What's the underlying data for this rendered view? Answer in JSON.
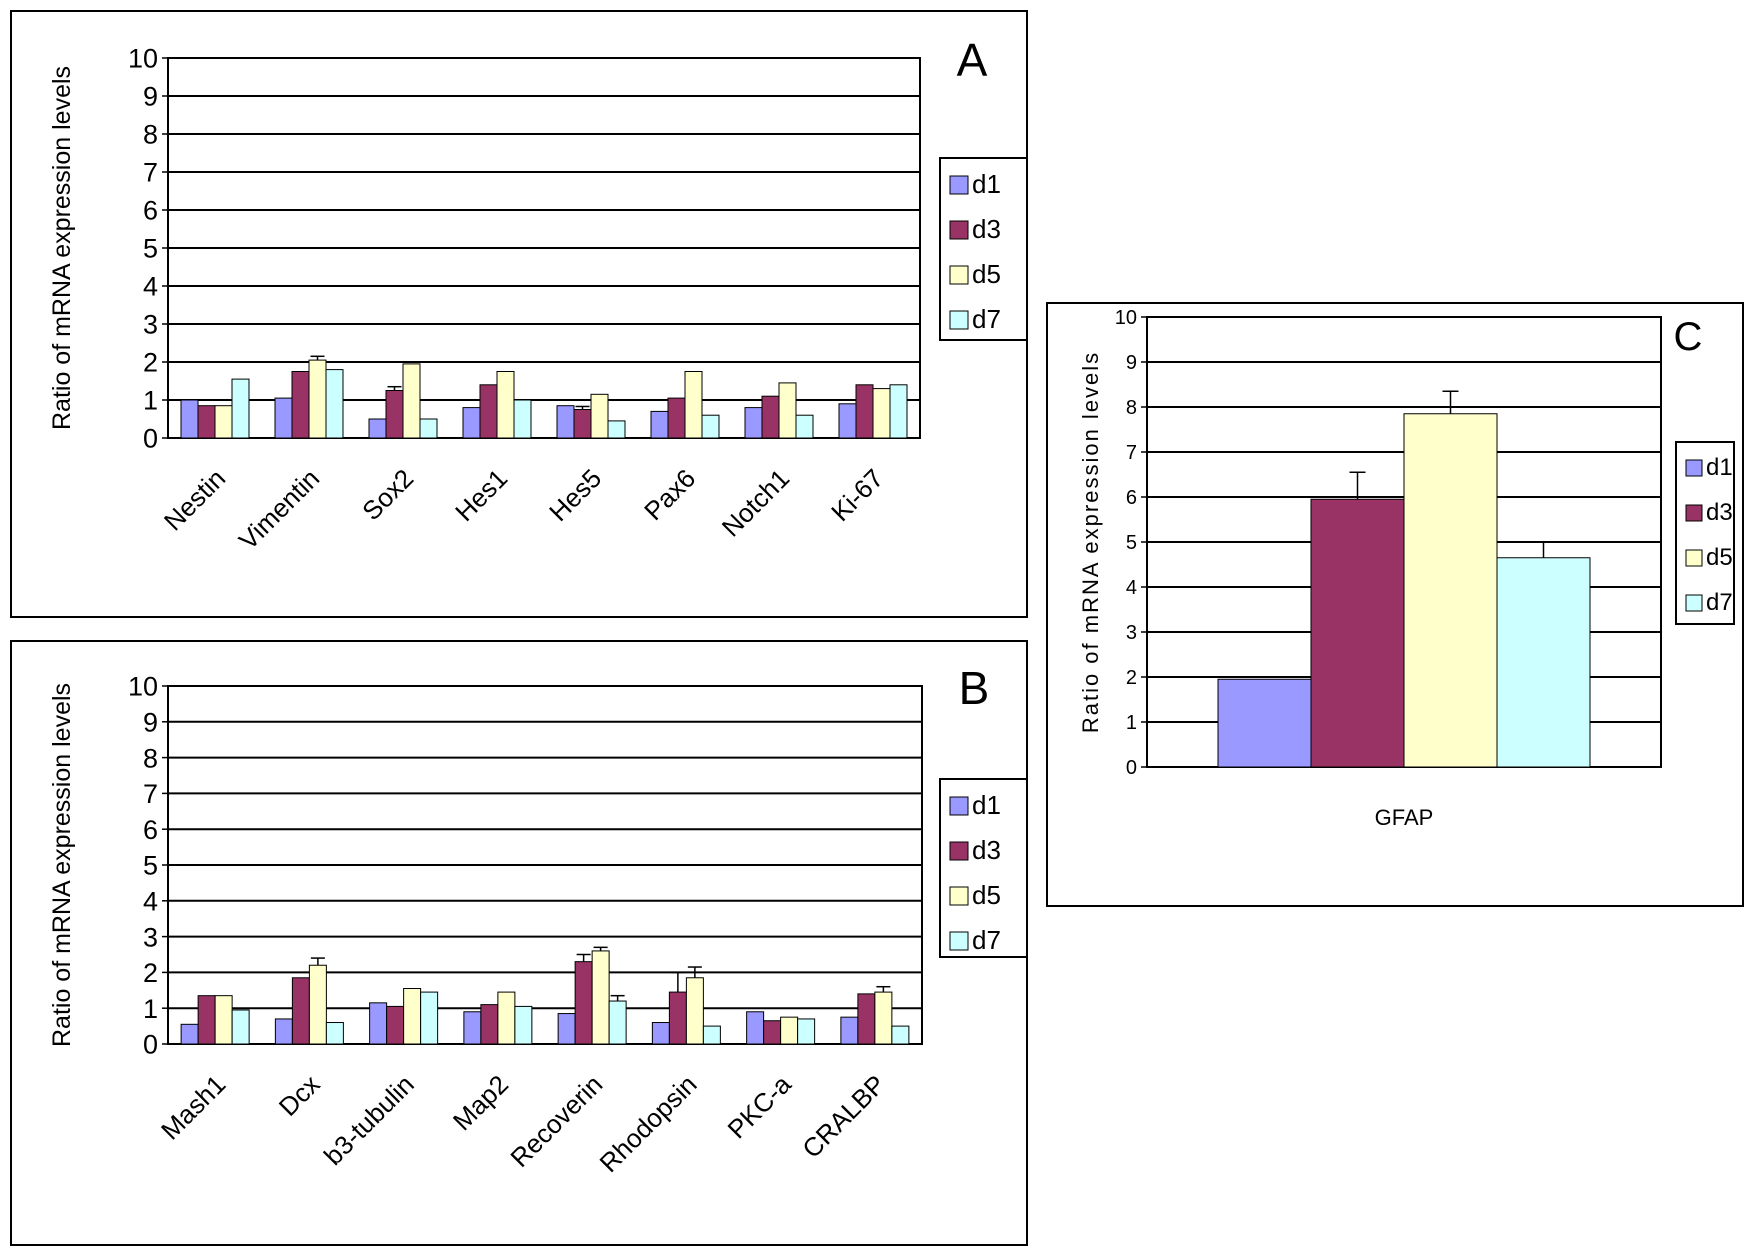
{
  "chart_data": [
    {
      "panel": "A",
      "type": "bar",
      "ylabel": "Ratio of mRNA expression levels",
      "ylim": [
        0,
        10
      ],
      "yticks": [
        "0",
        "1",
        "2",
        "3",
        "4",
        "5",
        "6",
        "7",
        "8",
        "9",
        "10"
      ],
      "grid": true,
      "legend_position": "right",
      "categories": [
        "Nestin",
        "Vimentin",
        "Sox2",
        "Hes1",
        "Hes5",
        "Pax6",
        "Notch1",
        "Ki-67"
      ],
      "series": [
        {
          "name": "d1",
          "color": "#9999ff",
          "values": [
            1.0,
            1.05,
            0.5,
            0.8,
            0.85,
            0.7,
            0.8,
            0.9
          ],
          "errors": [
            0,
            0,
            0,
            0,
            0,
            0,
            0,
            0
          ]
        },
        {
          "name": "d3",
          "color": "#993366",
          "values": [
            0.85,
            1.75,
            1.25,
            1.4,
            0.75,
            1.05,
            1.1,
            1.4
          ],
          "errors": [
            0,
            0,
            0.1,
            0,
            0.08,
            0,
            0,
            0
          ]
        },
        {
          "name": "d5",
          "color": "#ffffcc",
          "values": [
            0.85,
            2.05,
            1.95,
            1.75,
            1.15,
            1.75,
            1.45,
            1.3
          ],
          "errors": [
            0,
            0.1,
            0,
            0,
            0,
            0,
            0,
            0
          ]
        },
        {
          "name": "d7",
          "color": "#ccffff",
          "values": [
            1.55,
            1.8,
            0.5,
            1.0,
            0.45,
            0.6,
            0.6,
            1.4
          ],
          "errors": [
            0,
            0,
            0,
            0,
            0,
            0,
            0,
            0
          ]
        }
      ]
    },
    {
      "panel": "B",
      "type": "bar",
      "ylabel": "Ratio of mRNA expression levels",
      "ylim": [
        0,
        10
      ],
      "yticks": [
        "0",
        "1",
        "2",
        "3",
        "4",
        "5",
        "6",
        "7",
        "8",
        "9",
        "10"
      ],
      "grid": true,
      "legend_position": "right",
      "categories": [
        "Mash1",
        "Dcx",
        "b3-tubulin",
        "Map2",
        "Recoverin",
        "Rhodopsin",
        "PKC-a",
        "CRALBP"
      ],
      "series": [
        {
          "name": "d1",
          "color": "#9999ff",
          "values": [
            0.55,
            0.7,
            1.15,
            0.9,
            0.85,
            0.6,
            0.9,
            0.75
          ],
          "errors": [
            0,
            0,
            0,
            0,
            0,
            0,
            0,
            0
          ]
        },
        {
          "name": "d3",
          "color": "#993366",
          "values": [
            1.35,
            1.85,
            1.05,
            1.1,
            2.3,
            1.45,
            0.65,
            1.4
          ],
          "errors": [
            0,
            0,
            0,
            0,
            0.2,
            0.55,
            0,
            0
          ]
        },
        {
          "name": "d5",
          "color": "#ffffcc",
          "values": [
            1.35,
            2.2,
            1.55,
            1.45,
            2.6,
            1.85,
            0.75,
            1.45
          ],
          "errors": [
            0,
            0.2,
            0,
            0,
            0.1,
            0.3,
            0,
            0.15
          ]
        },
        {
          "name": "d7",
          "color": "#ccffff",
          "values": [
            0.95,
            0.6,
            1.45,
            1.05,
            1.2,
            0.5,
            0.7,
            0.5
          ],
          "errors": [
            0,
            0,
            0,
            0,
            0.15,
            0,
            0,
            0
          ]
        }
      ]
    },
    {
      "panel": "C",
      "type": "bar",
      "ylabel": "Ratio of mRNA expression levels",
      "ylim": [
        0,
        10
      ],
      "yticks": [
        "0",
        "1",
        "2",
        "3",
        "4",
        "5",
        "6",
        "7",
        "8",
        "9",
        "10"
      ],
      "grid": true,
      "legend_position": "right",
      "categories": [
        "GFAP"
      ],
      "series": [
        {
          "name": "d1",
          "color": "#9999ff",
          "values": [
            1.95
          ],
          "errors": [
            0
          ]
        },
        {
          "name": "d3",
          "color": "#993366",
          "values": [
            5.95
          ],
          "errors": [
            0.6
          ]
        },
        {
          "name": "d5",
          "color": "#ffffcc",
          "values": [
            7.85
          ],
          "errors": [
            0.5
          ]
        },
        {
          "name": "d7",
          "color": "#ccffff",
          "values": [
            4.65
          ],
          "errors": [
            0.35
          ]
        }
      ]
    }
  ]
}
